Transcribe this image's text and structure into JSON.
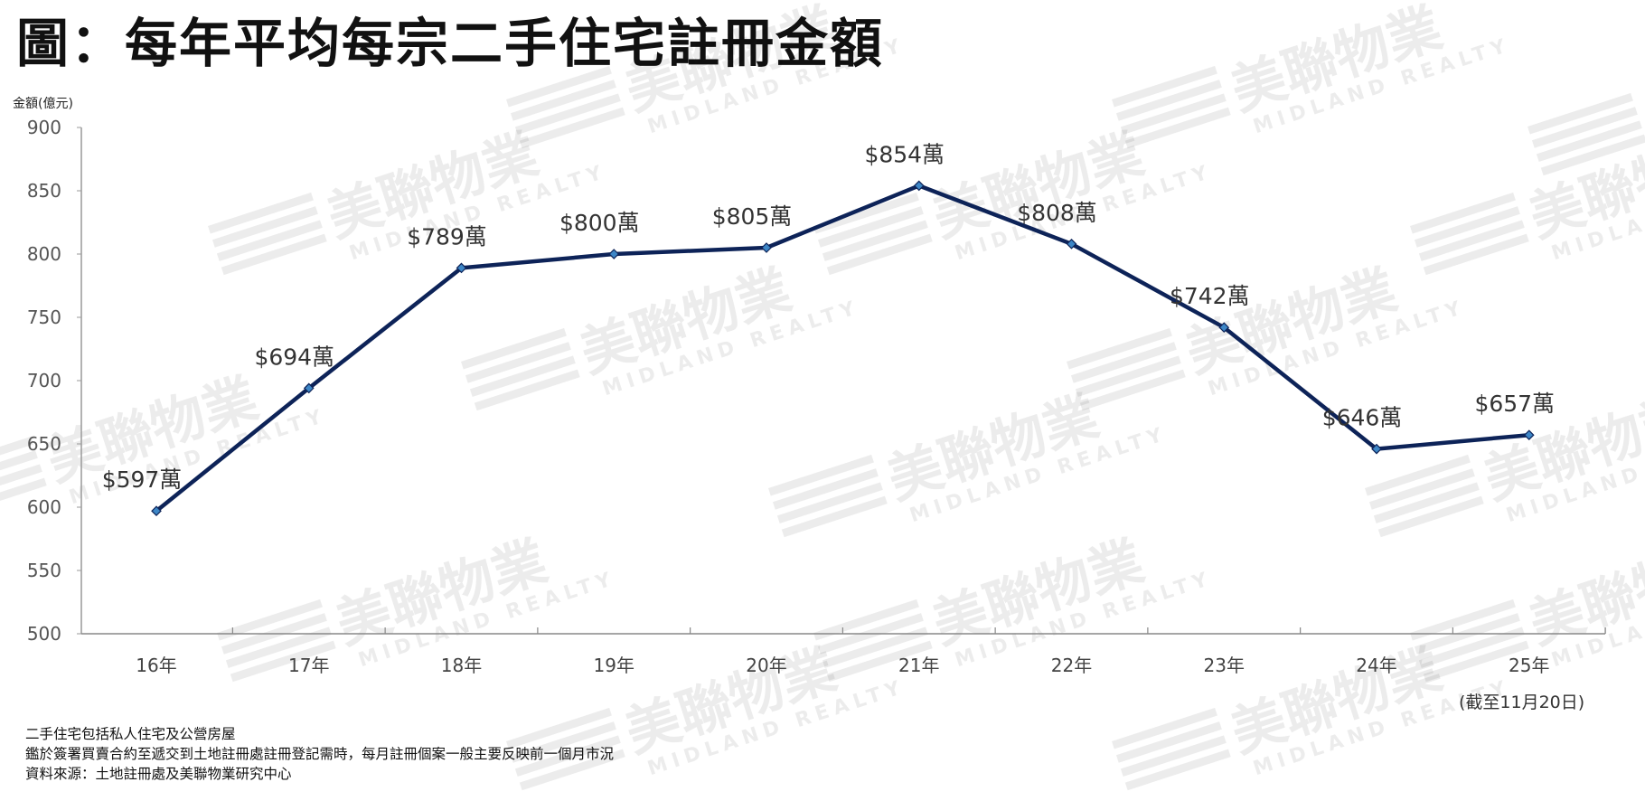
{
  "title": "圖：每年平均每宗二手住宅註冊金額",
  "watermark": {
    "brand": "美聯物業",
    "sub": "MIDLAND REALTY"
  },
  "as_of_note": "(截至11月20日)",
  "footnotes": [
    "二手住宅包括私人住宅及公營房屋",
    "鑑於簽署買賣合約至遞交到土地註冊處註冊登記需時，每月註冊個案一般主要反映前一個月市況",
    "資料來源：土地註冊處及美聯物業研究中心"
  ],
  "chart_data": {
    "type": "line",
    "title": "圖：每年平均每宗二手住宅註冊金額",
    "xlabel": "",
    "ylabel": "金額(億元)",
    "categories": [
      "16年",
      "17年",
      "18年",
      "19年",
      "20年",
      "21年",
      "22年",
      "23年",
      "24年",
      "25年"
    ],
    "values": [
      597,
      694,
      789,
      800,
      805,
      854,
      808,
      742,
      646,
      657
    ],
    "data_labels": [
      "$597萬",
      "$694萬",
      "$789萬",
      "$800萬",
      "$805萬",
      "$854萬",
      "$808萬",
      "$742萬",
      "$646萬",
      "$657萬"
    ],
    "ylim": [
      500,
      900
    ],
    "yticks": [
      500,
      550,
      600,
      650,
      700,
      750,
      800,
      850,
      900
    ],
    "grid": false,
    "legend": "none",
    "line_color": "#0d2358",
    "marker_color": "#3d86c6"
  }
}
